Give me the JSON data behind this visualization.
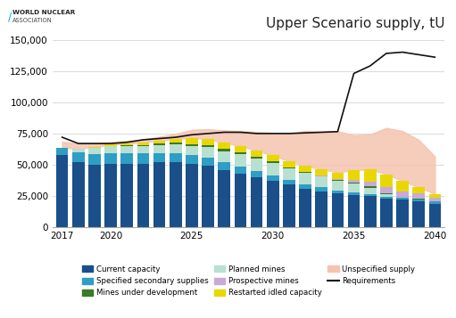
{
  "title": "Upper Scenario supply, tU",
  "years": [
    2017,
    2018,
    2019,
    2020,
    2021,
    2022,
    2023,
    2024,
    2025,
    2026,
    2027,
    2028,
    2029,
    2030,
    2031,
    2032,
    2033,
    2034,
    2035,
    2036,
    2037,
    2038,
    2039,
    2040
  ],
  "current_capacity": [
    58000,
    52000,
    50000,
    51000,
    51000,
    51000,
    52000,
    52000,
    51000,
    49000,
    46000,
    43000,
    40000,
    37000,
    34000,
    31000,
    29000,
    27000,
    26000,
    25000,
    23000,
    22000,
    21000,
    19000
  ],
  "specified_secondary": [
    5500,
    8000,
    8500,
    8500,
    8500,
    8000,
    7500,
    7500,
    7000,
    6500,
    6000,
    5500,
    5000,
    4500,
    4000,
    3500,
    3000,
    2500,
    2000,
    1800,
    1500,
    1500,
    1500,
    1500
  ],
  "planned_mines": [
    0,
    3000,
    5000,
    5500,
    5500,
    6000,
    6500,
    7000,
    7000,
    8500,
    9000,
    10000,
    10000,
    10000,
    9000,
    9000,
    8500,
    8000,
    7000,
    5000,
    2000,
    0,
    0,
    0
  ],
  "mines_under_development": [
    0,
    0,
    0,
    200,
    500,
    700,
    1000,
    1200,
    1500,
    1500,
    1500,
    1500,
    1200,
    1000,
    800,
    600,
    500,
    400,
    700,
    1000,
    1000,
    500,
    500,
    200
  ],
  "prospective_mines": [
    0,
    0,
    0,
    0,
    0,
    0,
    0,
    0,
    0,
    0,
    0,
    0,
    0,
    0,
    0,
    0,
    500,
    1000,
    2000,
    3500,
    5000,
    5000,
    4000,
    3000
  ],
  "restarted_idled": [
    0,
    0,
    500,
    1000,
    1500,
    2000,
    2500,
    3000,
    5000,
    5000,
    5000,
    5000,
    5000,
    5000,
    5000,
    5000,
    5000,
    5000,
    8000,
    10000,
    10000,
    8000,
    5000,
    3000
  ],
  "unspecified_supply": [
    5000,
    4000,
    3000,
    2000,
    2000,
    2500,
    3000,
    4000,
    6500,
    8000,
    10000,
    12000,
    15000,
    18000,
    22000,
    28000,
    30000,
    33000,
    28000,
    28000,
    37000,
    40000,
    38000,
    30000
  ],
  "requirements": [
    72000,
    67000,
    67000,
    67000,
    68000,
    70000,
    71000,
    72000,
    74000,
    75000,
    76000,
    76000,
    75000,
    75000,
    75000,
    75500,
    76000,
    76500,
    123000,
    129000,
    139000,
    140000,
    138000,
    136000
  ],
  "colors": {
    "current_capacity": "#1a4f8a",
    "specified_secondary": "#2e9ec4",
    "planned_mines": "#b8e0d0",
    "mines_under_development": "#3a7a28",
    "prospective_mines": "#c8aad8",
    "restarted_idled": "#e8d800",
    "unspecified_supply": "#f5c4b0",
    "requirements": "#111111"
  },
  "ylim": [
    0,
    155000
  ],
  "yticks": [
    0,
    25000,
    50000,
    75000,
    100000,
    125000,
    150000
  ],
  "xlim": [
    2016.4,
    2040.6
  ],
  "xticks": [
    2017,
    2020,
    2025,
    2030,
    2035,
    2040
  ],
  "bar_width": 0.75
}
